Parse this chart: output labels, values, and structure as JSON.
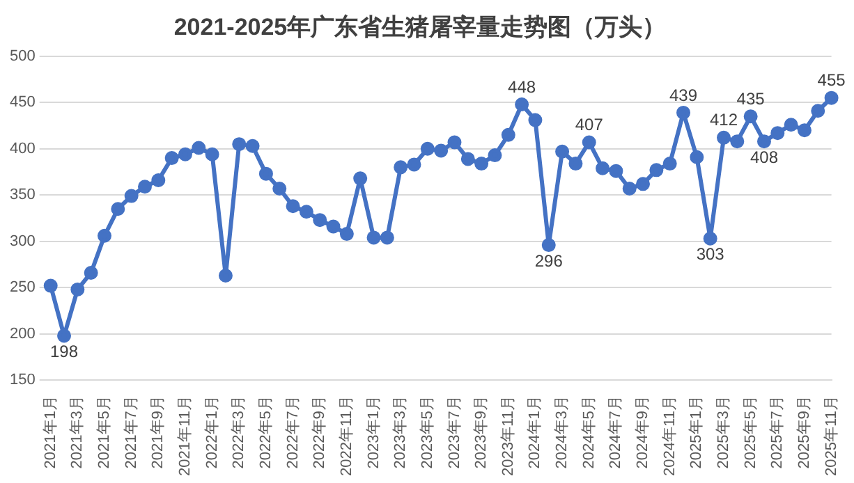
{
  "chart_data": {
    "type": "line",
    "title": "2021-2025年广东省生猪屠宰量走势图（万头）",
    "categories": [
      "2021年1月",
      null,
      "2021年3月",
      null,
      "2021年5月",
      null,
      "2021年7月",
      null,
      "2021年9月",
      null,
      "2021年11月",
      null,
      "2022年1月",
      null,
      "2022年3月",
      null,
      "2022年5月",
      null,
      "2022年7月",
      null,
      "2022年9月",
      null,
      "2022年11月",
      null,
      "2023年1月",
      null,
      "2023年3月",
      null,
      "2023年5月",
      null,
      "2023年7月",
      null,
      "2023年9月",
      null,
      "2023年11月",
      null,
      "2024年1月",
      null,
      "2024年3月",
      null,
      "2024年5月",
      null,
      "2024年7月",
      null,
      "2024年9月",
      null,
      "2024年11月",
      null,
      "2025年1月",
      null,
      "2025年3月",
      null,
      "2025年5月",
      null,
      "2025年7月",
      null,
      "2025年9月",
      null,
      "2025年11月"
    ],
    "series": [
      {
        "color": "#4472c4",
        "values": [
          252,
          198,
          248,
          266,
          306,
          335,
          349,
          359,
          366,
          390,
          394,
          401,
          394,
          263,
          405,
          403,
          373,
          357,
          338,
          332,
          323,
          316,
          308,
          368,
          304,
          304,
          380,
          383,
          400,
          398,
          407,
          389,
          384,
          393,
          415,
          448,
          431,
          296,
          397,
          384,
          407,
          379,
          376,
          357,
          362,
          377,
          384,
          439,
          391,
          303,
          412,
          408,
          435,
          408,
          417,
          426,
          420,
          441,
          455
        ],
        "value_labels": [
          null,
          "198",
          null,
          null,
          null,
          null,
          null,
          null,
          null,
          null,
          null,
          null,
          null,
          null,
          null,
          null,
          null,
          null,
          null,
          null,
          null,
          null,
          null,
          null,
          null,
          null,
          null,
          null,
          null,
          null,
          null,
          null,
          null,
          null,
          null,
          "448",
          null,
          "296",
          null,
          null,
          "407",
          null,
          null,
          null,
          null,
          null,
          null,
          "439",
          null,
          "303",
          "412",
          null,
          "435",
          "408",
          null,
          null,
          null,
          null,
          "455"
        ]
      }
    ],
    "ylim": [
      150,
      500
    ],
    "yticks": [
      150,
      200,
      250,
      300,
      350,
      400,
      450,
      500
    ],
    "grid": "y",
    "marker": "circle",
    "line_style": "solid",
    "legend": false
  }
}
